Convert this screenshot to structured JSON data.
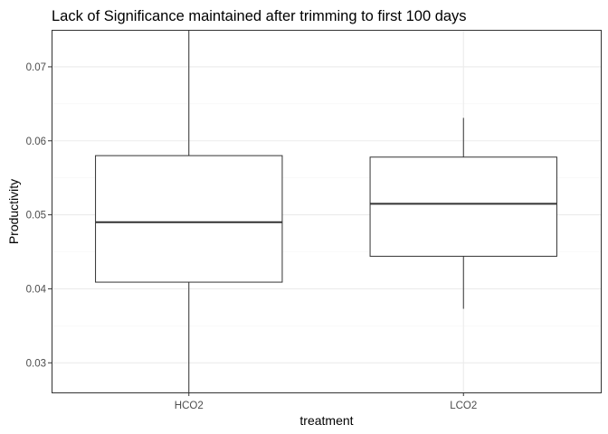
{
  "chart_data": {
    "type": "boxplot",
    "title": "Lack of Significance maintained after trimming to first 100 days",
    "xlabel": "treatment",
    "ylabel": "Productivity",
    "categories": [
      "HCO2",
      "LCO2"
    ],
    "boxes": [
      {
        "category": "HCO2",
        "whisker_low": 0.026,
        "q1": 0.0409,
        "median": 0.049,
        "q3": 0.058,
        "whisker_high": 0.075
      },
      {
        "category": "LCO2",
        "whisker_low": 0.0373,
        "q1": 0.0444,
        "median": 0.0515,
        "q3": 0.0578,
        "whisker_high": 0.0631
      }
    ],
    "ylim": [
      0.026,
      0.075
    ],
    "yticks": [
      0.03,
      0.04,
      0.05,
      0.06,
      0.07
    ],
    "ytick_labels": [
      "0.03",
      "0.04",
      "0.05",
      "0.06",
      "0.07"
    ],
    "grid": true,
    "legend": "none",
    "colors": {
      "box_fill": "#ffffff",
      "box_stroke": "#333333",
      "grid_major": "#ebebeb",
      "grid_minor": "#f5f5f5",
      "panel_border": "#333333"
    }
  }
}
